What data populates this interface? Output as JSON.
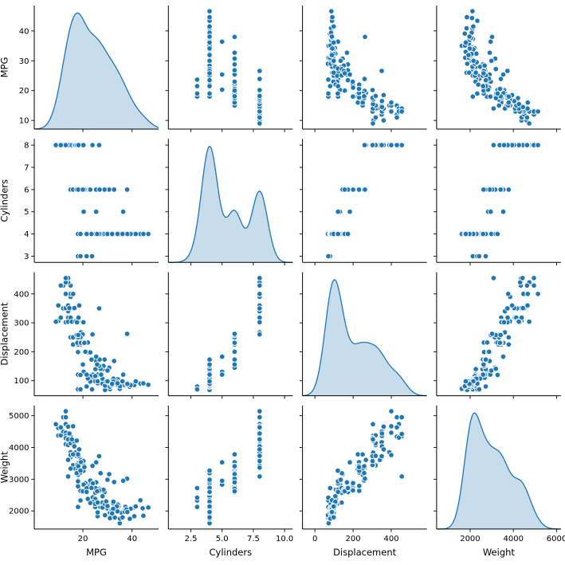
{
  "figure": {
    "background": "#ffffff",
    "description": "Pairplot scatter matrix of auto data: MPG, Cylinders, Displacement, Weight"
  },
  "chart_data": {
    "type": "scatter",
    "subtype": "pairplot-matrix",
    "diagonal": "kde",
    "grid": false,
    "legend": "none",
    "title": "",
    "variables": [
      "MPG",
      "Cylinders",
      "Displacement",
      "Weight"
    ],
    "style": {
      "marker_color": "#1f77b4",
      "marker_edge_color": "#ffffff",
      "kde_line_color": "#1f77b4",
      "kde_fill_color": "rgba(31,119,180,0.25)",
      "spine_color": "#000000",
      "tick_color": "#000000"
    },
    "axes": {
      "MPG": {
        "xlim": [
          0.2,
          50.8
        ],
        "ylim": [
          7.1,
          48.5
        ],
        "xticks": [
          20,
          40
        ],
        "xtick_labels": [
          "20",
          "40"
        ],
        "yticks": [
          10,
          20,
          30,
          40
        ],
        "ytick_labels": [
          "10",
          "20",
          "30",
          "40"
        ]
      },
      "Cylinders": {
        "xlim": [
          0.7,
          10.65
        ],
        "ylim": [
          2.72,
          8.28
        ],
        "xticks": [
          2.5,
          5.0,
          7.5,
          10.0
        ],
        "xtick_labels": [
          "2.5",
          "5.0",
          "7.5",
          "10.0"
        ],
        "yticks": [
          3,
          4,
          5,
          6,
          7,
          8
        ],
        "ytick_labels": [
          "3",
          "4",
          "5",
          "6",
          "7",
          "8"
        ]
      },
      "Displacement": {
        "xlim": [
          -65,
          586
        ],
        "ylim": [
          48,
          475
        ],
        "xticks": [
          0,
          200,
          400
        ],
        "xtick_labels": [
          "0",
          "200",
          "400"
        ],
        "yticks": [
          100,
          200,
          300,
          400
        ],
        "ytick_labels": [
          "100",
          "200",
          "300",
          "400"
        ]
      },
      "Weight": {
        "xlim": [
          450,
          6200
        ],
        "ylim": [
          1430,
          5320
        ],
        "xticks": [
          2000,
          4000,
          6000
        ],
        "xtick_labels": [
          "2000",
          "4000",
          "6000"
        ],
        "yticks": [
          2000,
          3000,
          4000,
          5000
        ],
        "ytick_labels": [
          "2000",
          "3000",
          "4000",
          "5000"
        ]
      }
    },
    "columns": [
      "mpg",
      "cylinders",
      "displacement",
      "weight"
    ],
    "records": [
      [
        18,
        8,
        307,
        3504
      ],
      [
        15,
        8,
        350,
        3693
      ],
      [
        18,
        8,
        318,
        3436
      ],
      [
        16,
        8,
        304,
        3433
      ],
      [
        17,
        8,
        302,
        3449
      ],
      [
        15,
        8,
        429,
        4341
      ],
      [
        14,
        8,
        454,
        4354
      ],
      [
        14,
        8,
        440,
        4312
      ],
      [
        14,
        8,
        455,
        4425
      ],
      [
        15,
        8,
        390,
        3850
      ],
      [
        14,
        8,
        340,
        3609
      ],
      [
        15,
        8,
        400,
        3761
      ],
      [
        14,
        8,
        455,
        3086
      ],
      [
        10,
        8,
        360,
        4615
      ],
      [
        10,
        8,
        307,
        4376
      ],
      [
        9,
        8,
        304,
        4732
      ],
      [
        11,
        8,
        318,
        4382
      ],
      [
        13,
        8,
        350,
        4100
      ],
      [
        12,
        8,
        350,
        4499
      ],
      [
        13,
        8,
        400,
        4464
      ],
      [
        13,
        8,
        351,
        4363
      ],
      [
        14,
        8,
        318,
        4077
      ],
      [
        13,
        8,
        302,
        4294
      ],
      [
        14,
        8,
        304,
        4257
      ],
      [
        15,
        8,
        318,
        4135
      ],
      [
        12,
        8,
        429,
        4952
      ],
      [
        13,
        8,
        440,
        4735
      ],
      [
        13,
        8,
        455,
        4951
      ],
      [
        14,
        8,
        360,
        4654
      ],
      [
        16.5,
        8,
        350,
        4165
      ],
      [
        14.5,
        8,
        351,
        4440
      ],
      [
        16,
        8,
        400,
        4668
      ],
      [
        17.5,
        8,
        305,
        4215
      ],
      [
        15.5,
        8,
        304,
        4257
      ],
      [
        16.5,
        8,
        351,
        4035
      ],
      [
        17,
        8,
        305,
        3840
      ],
      [
        17.6,
        8,
        302,
        3725
      ],
      [
        19.2,
        8,
        267,
        3605
      ],
      [
        18.5,
        8,
        360,
        3940
      ],
      [
        23.9,
        8,
        260,
        3420
      ],
      [
        26.6,
        8,
        350,
        3725
      ],
      [
        19.9,
        8,
        260,
        3365
      ],
      [
        18.2,
        8,
        318,
        3735
      ],
      [
        20.2,
        8,
        302,
        3570
      ],
      [
        13,
        8,
        400,
        5140
      ],
      [
        11,
        8,
        429,
        4633
      ],
      [
        18,
        6,
        199,
        2774
      ],
      [
        19,
        6,
        232,
        2634
      ],
      [
        21,
        6,
        199,
        2648
      ],
      [
        16,
        6,
        225,
        3439
      ],
      [
        17,
        6,
        250,
        3329
      ],
      [
        19,
        6,
        250,
        3302
      ],
      [
        18,
        6,
        232,
        3288
      ],
      [
        22,
        6,
        198,
        2833
      ],
      [
        18,
        6,
        250,
        3139
      ],
      [
        22,
        6,
        232,
        2789
      ],
      [
        19,
        6,
        225,
        3302
      ],
      [
        18,
        6,
        225,
        3785
      ],
      [
        23,
        6,
        198,
        2904
      ],
      [
        21,
        6,
        200,
        2875
      ],
      [
        19,
        6,
        232,
        3211
      ],
      [
        18,
        6,
        258,
        2962
      ],
      [
        15,
        6,
        250,
        3336
      ],
      [
        16,
        6,
        250,
        3781
      ],
      [
        17.7,
        6,
        231,
        3445
      ],
      [
        20.2,
        6,
        232,
        3265
      ],
      [
        19.2,
        6,
        231,
        3535
      ],
      [
        20.5,
        6,
        231,
        3425
      ],
      [
        20.6,
        6,
        231,
        3380
      ],
      [
        17.5,
        6,
        258,
        3193
      ],
      [
        18.1,
        6,
        258,
        3410
      ],
      [
        30.7,
        6,
        145,
        3160
      ],
      [
        32.7,
        6,
        168,
        2910
      ],
      [
        38,
        6,
        262,
        3015
      ],
      [
        25.4,
        6,
        168,
        2900
      ],
      [
        28.8,
        6,
        173,
        2595
      ],
      [
        26.8,
        6,
        173,
        2700
      ],
      [
        20,
        6,
        156,
        2620
      ],
      [
        20.3,
        5,
        131,
        2830
      ],
      [
        25.4,
        5,
        183,
        3530
      ],
      [
        36.4,
        5,
        121,
        2950
      ],
      [
        18,
        3,
        70,
        2124
      ],
      [
        19,
        3,
        70,
        2330
      ],
      [
        21.5,
        3,
        80,
        2720
      ],
      [
        23.7,
        3,
        70,
        2420
      ],
      [
        24,
        4,
        113,
        2372
      ],
      [
        27,
        4,
        97,
        2130
      ],
      [
        26,
        4,
        97,
        1835
      ],
      [
        25,
        4,
        110,
        2672
      ],
      [
        24,
        4,
        107,
        2430
      ],
      [
        25,
        4,
        104,
        2375
      ],
      [
        26,
        4,
        121,
        2234
      ],
      [
        28,
        4,
        140,
        2264
      ],
      [
        30,
        4,
        79,
        2074
      ],
      [
        31,
        4,
        71,
        1773
      ],
      [
        35,
        4,
        72,
        1613
      ],
      [
        26,
        4,
        91,
        1955
      ],
      [
        24,
        4,
        113,
        2278
      ],
      [
        25,
        4,
        98,
        2126
      ],
      [
        29,
        4,
        97,
        2171
      ],
      [
        23,
        4,
        120,
        2957
      ],
      [
        24,
        4,
        121,
        2868
      ],
      [
        18,
        4,
        121,
        2933
      ],
      [
        29,
        4,
        68,
        1867
      ],
      [
        23,
        4,
        116,
        2246
      ],
      [
        28,
        4,
        90,
        2123
      ],
      [
        23,
        4,
        97,
        2254
      ],
      [
        22,
        4,
        108,
        2379
      ],
      [
        32,
        4,
        83,
        2003
      ],
      [
        28,
        4,
        90,
        2108
      ],
      [
        31,
        4,
        79,
        1950
      ],
      [
        33,
        4,
        91,
        1795
      ],
      [
        28,
        4,
        107,
        2464
      ],
      [
        25,
        4,
        116,
        2220
      ],
      [
        25,
        4,
        140,
        2572
      ],
      [
        26,
        4,
        98,
        2265
      ],
      [
        29,
        4,
        83,
        2219
      ],
      [
        31.5,
        4,
        98,
        2045
      ],
      [
        33.5,
        4,
        98,
        2075
      ],
      [
        34.1,
        4,
        86,
        1975
      ],
      [
        35.7,
        4,
        98,
        1945
      ],
      [
        27.4,
        4,
        121,
        2670
      ],
      [
        25.1,
        4,
        140,
        2720
      ],
      [
        29.5,
        4,
        97,
        2300
      ],
      [
        34.5,
        4,
        105,
        2150
      ],
      [
        37.3,
        4,
        91,
        2130
      ],
      [
        28.4,
        4,
        151,
        2670
      ],
      [
        34.2,
        4,
        105,
        2200
      ],
      [
        31.8,
        4,
        85,
        2020
      ],
      [
        37,
        4,
        91,
        2025
      ],
      [
        32.2,
        4,
        108,
        2245
      ],
      [
        46.6,
        4,
        86,
        2110
      ],
      [
        40.8,
        4,
        85,
        2110
      ],
      [
        44.3,
        4,
        90,
        2085
      ],
      [
        43.4,
        4,
        90,
        2335
      ],
      [
        44.6,
        4,
        91,
        1850
      ],
      [
        40.9,
        4,
        85,
        1835
      ],
      [
        33.8,
        4,
        97,
        2145
      ],
      [
        32.4,
        4,
        107,
        2290
      ],
      [
        30,
        4,
        135,
        2984
      ],
      [
        27.2,
        4,
        141,
        3190
      ],
      [
        26.6,
        4,
        151,
        2635
      ],
      [
        25.8,
        4,
        156,
        2620
      ],
      [
        23.5,
        4,
        173,
        2725
      ],
      [
        30,
        4,
        98,
        2155
      ],
      [
        39.1,
        4,
        79,
        1755
      ],
      [
        39.4,
        4,
        85,
        2070
      ],
      [
        35.1,
        4,
        81,
        1760
      ],
      [
        32.3,
        4,
        97,
        2065
      ],
      [
        37,
        4,
        85,
        1975
      ],
      [
        37.7,
        4,
        89,
        2050
      ],
      [
        34.1,
        4,
        91,
        1985
      ],
      [
        31.9,
        4,
        89,
        1925
      ],
      [
        41.5,
        4,
        98,
        2144
      ],
      [
        38.1,
        4,
        89,
        1968
      ],
      [
        36.1,
        4,
        98,
        1800
      ],
      [
        19,
        4,
        120,
        3270
      ],
      [
        21.5,
        4,
        121,
        2600
      ]
    ]
  }
}
